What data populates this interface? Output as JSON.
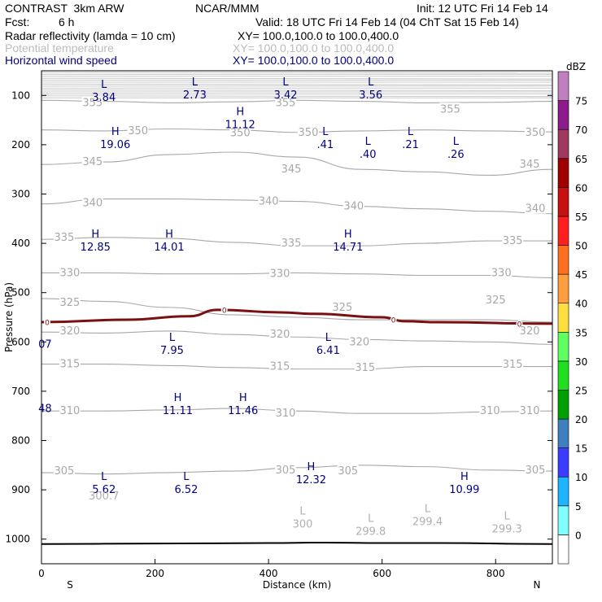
{
  "header": {
    "model": "CONTRAST  3km ARW",
    "org": "NCAR/MMM",
    "init": "Init: 12 UTC Fri 14 Feb 14",
    "fcst_label": "Fcst:",
    "fcst_value": "6 h",
    "valid": "Valid: 18 UTC Fri 14 Feb 14 (04 ChT Sat 15 Feb 14)",
    "fields": [
      {
        "name": "Radar reflectivity (lamda = 10 cm)",
        "xy": "XY= 100.0,100.0 to 100.0,400.0",
        "color": "#000000"
      },
      {
        "name": "Potential temperature",
        "xy": "XY= 100.0,100.0 to 100.0,400.0",
        "color": "#bbbbbb"
      },
      {
        "name": "Horizontal wind speed",
        "xy": "XY= 100.0,100.0 to 100.0,400.0",
        "color": "#000080"
      }
    ]
  },
  "chart_data": {
    "type": "cross-section",
    "xlabel": "Distance (km)",
    "ylabel": "Pressure (hPa)",
    "xlim": [
      0,
      900
    ],
    "ylim": [
      1050,
      50
    ],
    "x_ticks": [
      0,
      200,
      400,
      600,
      800
    ],
    "y_ticks": [
      100,
      200,
      300,
      400,
      500,
      600,
      700,
      800,
      900,
      1000
    ],
    "end_labels": {
      "left": "S",
      "right": "N"
    },
    "colorbar": {
      "title": "dBZ",
      "levels": [
        "0",
        "5",
        "10",
        "15",
        "20",
        "25",
        "30",
        "35",
        "40",
        "45",
        "50",
        "55",
        "60",
        "65",
        "70",
        "75"
      ],
      "colors": [
        "#ffffff",
        "#7fffff",
        "#1fb4ff",
        "#3c3cff",
        "#3f7fbf",
        "#00a000",
        "#1fdf1f",
        "#5fff5f",
        "#ffdf3f",
        "#ff9f3f",
        "#ff6f1f",
        "#ff1f1f",
        "#c81010",
        "#a00000",
        "#a03860",
        "#8c1c8c",
        "#c080c0"
      ]
    },
    "theta_isentropes": [
      {
        "label": "355",
        "p": [
          110,
          112,
          115,
          113,
          110,
          112,
          115,
          114,
          112
        ]
      },
      {
        "label": "350",
        "p": [
          170,
          172,
          168,
          170,
          175,
          172,
          170,
          172,
          174
        ]
      },
      {
        "label": "345",
        "p": [
          240,
          235,
          220,
          215,
          225,
          250,
          255,
          262,
          250
        ]
      },
      {
        "label": "340",
        "p": [
          320,
          310,
          310,
          312,
          315,
          325,
          330,
          335,
          340
        ]
      },
      {
        "label": "335",
        "p": [
          392,
          388,
          390,
          398,
          405,
          405,
          400,
          395,
          395
        ]
      },
      {
        "label": "330",
        "p": [
          460,
          460,
          462,
          462,
          460,
          462,
          465,
          465,
          470
        ]
      },
      {
        "label": "325",
        "p": [
          512,
          518,
          530,
          545,
          550,
          555,
          555,
          555,
          560
        ]
      },
      {
        "label": "320",
        "p": [
          580,
          582,
          578,
          585,
          590,
          595,
          598,
          600,
          605
        ]
      },
      {
        "label": "315",
        "p": [
          645,
          645,
          648,
          652,
          655,
          655,
          650,
          650,
          650
        ]
      },
      {
        "label": "310",
        "p": [
          740,
          740,
          738,
          735,
          740,
          745,
          745,
          742,
          740
        ]
      },
      {
        "label": "305",
        "p": [
          865,
          868,
          865,
          862,
          855,
          850,
          853,
          860,
          862
        ]
      }
    ],
    "theta_label_positions": [
      {
        "label": "355",
        "x": 90,
        "p": 115
      },
      {
        "label": "355",
        "x": 430,
        "p": 115
      },
      {
        "label": "355",
        "x": 720,
        "p": 128
      },
      {
        "label": "350",
        "x": 170,
        "p": 172
      },
      {
        "label": "350",
        "x": 350,
        "p": 176
      },
      {
        "label": "350",
        "x": 470,
        "p": 175
      },
      {
        "label": "350",
        "x": 870,
        "p": 175
      },
      {
        "label": "345",
        "x": 90,
        "p": 235
      },
      {
        "label": "345",
        "x": 440,
        "p": 250
      },
      {
        "label": "345",
        "x": 860,
        "p": 240
      },
      {
        "label": "340",
        "x": 90,
        "p": 318
      },
      {
        "label": "340",
        "x": 400,
        "p": 315
      },
      {
        "label": "340",
        "x": 550,
        "p": 325
      },
      {
        "label": "340",
        "x": 870,
        "p": 330
      },
      {
        "label": "335",
        "x": 40,
        "p": 388
      },
      {
        "label": "335",
        "x": 440,
        "p": 400
      },
      {
        "label": "335",
        "x": 830,
        "p": 395
      },
      {
        "label": "330",
        "x": 50,
        "p": 460
      },
      {
        "label": "330",
        "x": 420,
        "p": 462
      },
      {
        "label": "330",
        "x": 810,
        "p": 460
      },
      {
        "label": "325",
        "x": 50,
        "p": 520
      },
      {
        "label": "325",
        "x": 530,
        "p": 530
      },
      {
        "label": "325",
        "x": 800,
        "p": 515
      },
      {
        "label": "320",
        "x": 50,
        "p": 578
      },
      {
        "label": "320",
        "x": 420,
        "p": 585
      },
      {
        "label": "320",
        "x": 560,
        "p": 600
      },
      {
        "label": "320",
        "x": 860,
        "p": 578
      },
      {
        "label": "315",
        "x": 50,
        "p": 645
      },
      {
        "label": "315",
        "x": 420,
        "p": 650
      },
      {
        "label": "315",
        "x": 570,
        "p": 652
      },
      {
        "label": "315",
        "x": 830,
        "p": 646
      },
      {
        "label": "310",
        "x": 50,
        "p": 740
      },
      {
        "label": "310",
        "x": 430,
        "p": 745
      },
      {
        "label": "310",
        "x": 790,
        "p": 740
      },
      {
        "label": "310",
        "x": 860,
        "p": 740
      },
      {
        "label": "305",
        "x": 40,
        "p": 862
      },
      {
        "label": "305",
        "x": 430,
        "p": 860
      },
      {
        "label": "305",
        "x": 540,
        "p": 862
      },
      {
        "label": "305",
        "x": 870,
        "p": 860
      }
    ],
    "zero_isotherm": {
      "x": [
        0,
        150,
        260,
        310,
        420,
        480,
        600,
        640,
        700,
        900
      ],
      "p": [
        560,
        555,
        548,
        535,
        540,
        543,
        550,
        558,
        560,
        563
      ],
      "labels": [
        {
          "text": "0",
          "x": 10,
          "p": 560
        },
        {
          "text": "0",
          "x": 322,
          "p": 535
        },
        {
          "text": "0",
          "x": 620,
          "p": 555
        },
        {
          "text": "0",
          "x": 842,
          "p": 563
        }
      ]
    },
    "wind_extrema": [
      {
        "type": "L",
        "value": "3.84",
        "x": 110,
        "p": 85
      },
      {
        "type": "L",
        "value": "2.73",
        "x": 270,
        "p": 80
      },
      {
        "type": "L",
        "value": "3.42",
        "x": 430,
        "p": 80
      },
      {
        "type": "L",
        "value": "3.56",
        "x": 580,
        "p": 80
      },
      {
        "type": "H",
        "value": "11.12",
        "x": 350,
        "p": 140
      },
      {
        "type": "H",
        "value": "19.06",
        "x": 130,
        "p": 180
      },
      {
        "type": "L",
        "value": ".41",
        "x": 500,
        "p": 180
      },
      {
        "type": "L",
        "value": ".40",
        "x": 575,
        "p": 200
      },
      {
        "type": "L",
        "value": ".21",
        "x": 650,
        "p": 180
      },
      {
        "type": "L",
        "value": ".26",
        "x": 730,
        "p": 200
      },
      {
        "type": "H",
        "value": "12.85",
        "x": 95,
        "p": 388
      },
      {
        "type": "H",
        "value": "14.01",
        "x": 225,
        "p": 388
      },
      {
        "type": "H",
        "value": "14.71",
        "x": 540,
        "p": 388
      },
      {
        "type": "L",
        "value": "7.95",
        "x": 230,
        "p": 598
      },
      {
        "type": "L",
        "value": "6.41",
        "x": 505,
        "p": 598
      },
      {
        "type": "H",
        "value": "11.11",
        "x": 240,
        "p": 720
      },
      {
        "type": "H",
        "value": "11.46",
        "x": 355,
        "p": 720
      },
      {
        "type": "H",
        "value": "12.32",
        "x": 475,
        "p": 860
      },
      {
        "type": "L",
        "value": "5.62",
        "x": 110,
        "p": 880
      },
      {
        "type": "L",
        "value": "6.52",
        "x": 255,
        "p": 880
      },
      {
        "type": "H",
        "value": "10.99",
        "x": 745,
        "p": 880
      }
    ],
    "edge_values": [
      {
        "value": "07",
        "x": 12,
        "p": 605
      },
      {
        "value": "48",
        "x": 12,
        "p": 736
      }
    ],
    "theta_extrema": [
      {
        "type": "L",
        "value": "300.7",
        "x": 110,
        "p": 920,
        "label_only": true
      },
      {
        "type": "L",
        "value": "300",
        "x": 460,
        "p": 950
      },
      {
        "type": "L",
        "value": "299.8",
        "x": 580,
        "p": 965
      },
      {
        "type": "L",
        "value": "299.4",
        "x": 680,
        "p": 945
      },
      {
        "type": "L",
        "value": "299.3",
        "x": 820,
        "p": 960
      }
    ],
    "surface": {
      "x": [
        0,
        200,
        400,
        500,
        600,
        700,
        900
      ],
      "p": [
        1010,
        1009,
        1008,
        1007,
        1008,
        1008,
        1010
      ]
    }
  }
}
